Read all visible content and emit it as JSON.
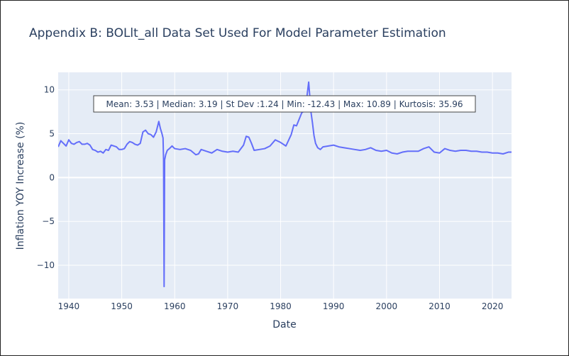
{
  "chart_data": {
    "type": "line",
    "title": "Appendix B: BOLlt_all Data Set Used For Model Parameter Estimation",
    "xlabel": "Date",
    "ylabel": "Inflation YOY Increase (%)",
    "xlim": [
      1938.0,
      2023.6
    ],
    "ylim": [
      -13.8,
      12.0
    ],
    "x_ticks": [
      1940,
      1950,
      1960,
      1970,
      1980,
      1990,
      2000,
      2010,
      2020
    ],
    "x_tick_labels": [
      "1940",
      "1950",
      "1960",
      "1970",
      "1980",
      "1990",
      "2000",
      "2010",
      "2020"
    ],
    "y_ticks": [
      10,
      5,
      0,
      -5,
      -10
    ],
    "y_tick_labels": [
      "10",
      "5",
      "0",
      "−5",
      "−10"
    ],
    "grid": true,
    "colors": {
      "line": "#636efa",
      "plot_background": "#e5ecf6",
      "grid": "#ffffff",
      "text": "#2a3f5f"
    },
    "annotation": "Mean: 3.53 | Median: 3.19 | St Dev :1.24 | Min: -12.43 | Max: 10.89 | Kurtosis: 35.96",
    "series": [
      {
        "x": [
          1938.0,
          1938.5,
          1939.0,
          1939.5,
          1940.0,
          1940.5,
          1941.0,
          1941.5,
          1942.0,
          1942.5,
          1943.0,
          1943.5,
          1944.0,
          1944.5,
          1945.0,
          1945.5,
          1946.0,
          1946.5,
          1947.0,
          1947.5,
          1948.0,
          1948.5,
          1949.0,
          1949.5,
          1950.0,
          1950.5,
          1951.0,
          1951.5,
          1952.0,
          1952.5,
          1953.0,
          1953.5,
          1954.0,
          1954.5,
          1955.0,
          1955.5,
          1956.0,
          1956.5,
          1957.0,
          1957.3,
          1957.6,
          1957.8,
          1957.9,
          1958.0,
          1958.1,
          1958.3,
          1958.6,
          1959.0,
          1959.5,
          1960.0,
          1961.0,
          1962.0,
          1963.0,
          1964.0,
          1964.5,
          1965.0,
          1966.0,
          1967.0,
          1968.0,
          1969.0,
          1970.0,
          1971.0,
          1972.0,
          1973.0,
          1973.5,
          1974.0,
          1974.5,
          1975.0,
          1976.0,
          1977.0,
          1978.0,
          1979.0,
          1980.0,
          1981.0,
          1982.0,
          1982.5,
          1983.0,
          1984.0,
          1984.5,
          1985.0,
          1985.3,
          1985.5,
          1985.7,
          1986.0,
          1986.3,
          1986.6,
          1987.0,
          1987.5,
          1988.0,
          1989.0,
          1990.0,
          1991.0,
          1992.0,
          1993.0,
          1994.0,
          1995.0,
          1996.0,
          1997.0,
          1998.0,
          1999.0,
          2000.0,
          2001.0,
          2002.0,
          2003.0,
          2004.0,
          2005.0,
          2006.0,
          2007.0,
          2008.0,
          2009.0,
          2010.0,
          2011.0,
          2012.0,
          2013.0,
          2014.0,
          2015.0,
          2016.0,
          2017.0,
          2018.0,
          2019.0,
          2020.0,
          2021.0,
          2022.0,
          2023.0,
          2023.6
        ],
        "y": [
          3.5,
          4.2,
          3.9,
          3.6,
          4.3,
          3.9,
          3.8,
          4.0,
          4.1,
          3.8,
          3.8,
          3.9,
          3.7,
          3.2,
          3.1,
          2.9,
          3.0,
          2.8,
          3.2,
          3.1,
          3.7,
          3.6,
          3.5,
          3.2,
          3.2,
          3.3,
          3.8,
          4.1,
          4.0,
          3.8,
          3.7,
          3.9,
          5.2,
          5.4,
          5.0,
          4.9,
          4.6,
          5.2,
          6.4,
          5.6,
          5.0,
          4.5,
          2.0,
          -12.43,
          2.0,
          2.6,
          3.1,
          3.3,
          3.6,
          3.3,
          3.2,
          3.3,
          3.1,
          2.6,
          2.7,
          3.2,
          3.0,
          2.8,
          3.2,
          3.0,
          2.9,
          3.0,
          2.9,
          3.7,
          4.7,
          4.6,
          3.9,
          3.1,
          3.2,
          3.3,
          3.6,
          4.3,
          4.0,
          3.6,
          4.9,
          6.0,
          5.9,
          7.4,
          7.6,
          9.4,
          10.89,
          9.3,
          7.6,
          6.3,
          4.8,
          3.9,
          3.4,
          3.2,
          3.5,
          3.6,
          3.7,
          3.5,
          3.4,
          3.3,
          3.2,
          3.1,
          3.2,
          3.4,
          3.1,
          3.0,
          3.1,
          2.8,
          2.7,
          2.9,
          3.0,
          3.0,
          3.0,
          3.3,
          3.5,
          2.9,
          2.8,
          3.3,
          3.1,
          3.0,
          3.1,
          3.1,
          3.0,
          3.0,
          2.9,
          2.9,
          2.8,
          2.8,
          2.7,
          2.9,
          2.9
        ]
      }
    ]
  }
}
